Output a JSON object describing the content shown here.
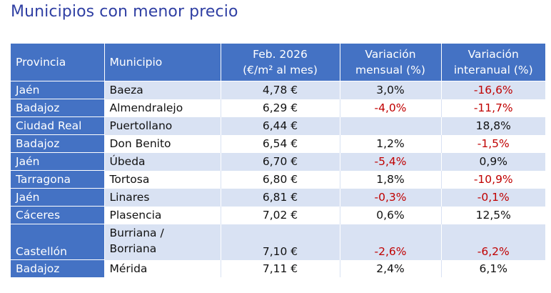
{
  "title": "Municipios con menor precio",
  "table": {
    "headers": {
      "provincia": "Provincia",
      "municipio": "Municipio",
      "precio_line1": "Feb. 2026",
      "precio_line2": "(€/m² al mes)",
      "mensual_line1": "Variación",
      "mensual_line2": "mensual (%)",
      "interanual_line1": "Variación",
      "interanual_line2": "interanual (%)"
    },
    "rows": [
      {
        "provincia": "Jaén",
        "municipio_l1": "Baeza",
        "municipio_l2": "",
        "precio": "4,78 €",
        "mensual": "3,0%",
        "interanual": "-16,6%"
      },
      {
        "provincia": "Badajoz",
        "municipio_l1": "Almendralejo",
        "municipio_l2": "",
        "precio": "6,29 €",
        "mensual": "-4,0%",
        "interanual": "-11,7%"
      },
      {
        "provincia": "Ciudad Real",
        "municipio_l1": "Puertollano",
        "municipio_l2": "",
        "precio": "6,44 €",
        "mensual": "",
        "interanual": "18,8%"
      },
      {
        "provincia": "Badajoz",
        "municipio_l1": "Don Benito",
        "municipio_l2": "",
        "precio": "6,54 €",
        "mensual": "1,2%",
        "interanual": "-1,5%"
      },
      {
        "provincia": "Jaén",
        "municipio_l1": "Úbeda",
        "municipio_l2": "",
        "precio": "6,70 €",
        "mensual": "-5,4%",
        "interanual": "0,9%"
      },
      {
        "provincia": "Tarragona",
        "municipio_l1": "Tortosa",
        "municipio_l2": "",
        "precio": "6,80 €",
        "mensual": "1,8%",
        "interanual": "-10,9%"
      },
      {
        "provincia": "Jaén",
        "municipio_l1": "Linares",
        "municipio_l2": "",
        "precio": "6,81 €",
        "mensual": "-0,3%",
        "interanual": "-0,1%"
      },
      {
        "provincia": "Cáceres",
        "municipio_l1": "Plasencia",
        "municipio_l2": "",
        "precio": "7,02 €",
        "mensual": "0,6%",
        "interanual": "12,5%"
      },
      {
        "provincia": "Castellón",
        "municipio_l1": "Burriana /",
        "municipio_l2": "Borriana",
        "precio": "7,10 €",
        "mensual": "-2,6%",
        "interanual": "-6,2%"
      },
      {
        "provincia": "Badajoz",
        "municipio_l1": "Mérida",
        "municipio_l2": "",
        "precio": "7,11 €",
        "mensual": "2,4%",
        "interanual": "6,1%"
      }
    ]
  },
  "colors": {
    "header_bg": "#4472c4",
    "row_band": "#d9e2f3",
    "negative": "#c00000",
    "title": "#2f3fa3"
  }
}
